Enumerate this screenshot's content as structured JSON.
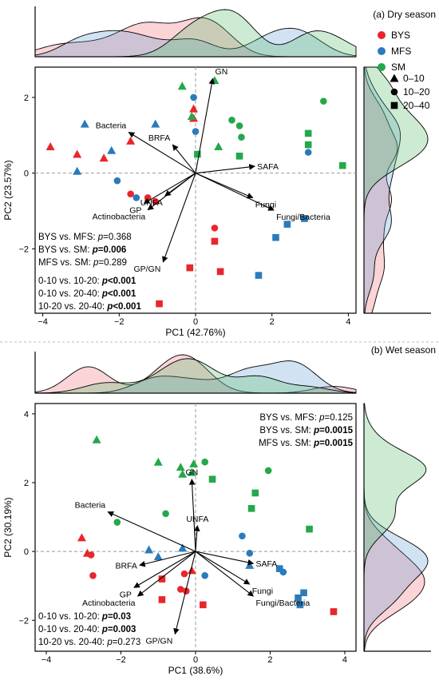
{
  "colors": {
    "BYS": "#e8262b",
    "MFS": "#2b7bbb",
    "SM": "#24a84a"
  },
  "legend": {
    "groups": [
      "BYS",
      "MFS",
      "SM"
    ],
    "depths": [
      "0–10",
      "10–20",
      "20–40"
    ]
  },
  "chart_data": [
    {
      "type": "scatter",
      "panel": "(a) Dry season",
      "xlabel": "PC1 (42.76%)",
      "ylabel": "PC2 (23.57%)",
      "xlim": [
        -4.2,
        4.2
      ],
      "ylim": [
        -3.7,
        2.8
      ],
      "xticks": [
        -4,
        -2,
        0,
        2,
        4
      ],
      "yticks": [
        -2,
        0,
        2
      ],
      "stats_left": [
        {
          "a": "BYS vs. MFS: ",
          "p": "p",
          "b": "=0.368",
          "bold": false
        },
        {
          "a": "BYS vs. SM: ",
          "p": "p",
          "b": "=0.006",
          "bold": true
        },
        {
          "a": "MFS vs. SM: ",
          "p": "p",
          "b": "=0.289",
          "bold": false
        }
      ],
      "stats_depth": [
        {
          "a": "0-10 vs. 10-20: ",
          "p": "p",
          "b": "<0.001",
          "bold": true
        },
        {
          "a": "0-10 vs. 20-40: ",
          "p": "p",
          "b": "<0.001",
          "bold": true
        },
        {
          "a": "10-20 vs. 20-40: ",
          "p": "p",
          "b": "<0.001",
          "bold": true
        }
      ],
      "vectors": [
        {
          "label": "GN",
          "x": 0.45,
          "y": 2.5
        },
        {
          "label": "Bacteria",
          "x": -1.75,
          "y": 1.08
        },
        {
          "label": "BRFA",
          "x": -0.6,
          "y": 0.75
        },
        {
          "label": "SAFA",
          "x": 1.55,
          "y": 0.18
        },
        {
          "label": "Fungi",
          "x": 1.5,
          "y": -0.65
        },
        {
          "label": "Fungi/Bacteria",
          "x": 2.05,
          "y": -0.98
        },
        {
          "label": "GP",
          "x": -1.35,
          "y": -0.8
        },
        {
          "label": "Actinobacteria",
          "x": -1.25,
          "y": -0.97
        },
        {
          "label": "UNFA",
          "x": -0.8,
          "y": -0.6
        },
        {
          "label": "GP/GN",
          "x": -0.85,
          "y": -2.35
        }
      ],
      "points": [
        {
          "g": "BYS",
          "d": "0–10",
          "x": -3.8,
          "y": 0.7
        },
        {
          "g": "BYS",
          "d": "0–10",
          "x": -3.1,
          "y": 0.5
        },
        {
          "g": "BYS",
          "d": "0–10",
          "x": -2.4,
          "y": 0.4
        },
        {
          "g": "BYS",
          "d": "0–10",
          "x": -1.7,
          "y": 0.85
        },
        {
          "g": "BYS",
          "d": "0–10",
          "x": -0.05,
          "y": 1.7
        },
        {
          "g": "BYS",
          "d": "0–10",
          "x": -0.05,
          "y": 1.45
        },
        {
          "g": "BYS",
          "d": "10–20",
          "x": -1.7,
          "y": -0.55
        },
        {
          "g": "BYS",
          "d": "10–20",
          "x": -1.25,
          "y": -0.65
        },
        {
          "g": "BYS",
          "d": "10–20",
          "x": -1.05,
          "y": -0.75
        },
        {
          "g": "BYS",
          "d": "10–20",
          "x": 0.5,
          "y": -1.45
        },
        {
          "g": "BYS",
          "d": "20–40",
          "x": 0.5,
          "y": -1.8
        },
        {
          "g": "BYS",
          "d": "20–40",
          "x": -0.15,
          "y": -2.5
        },
        {
          "g": "BYS",
          "d": "20–40",
          "x": 0.65,
          "y": -2.6
        },
        {
          "g": "BYS",
          "d": "20–40",
          "x": -0.95,
          "y": -3.45
        },
        {
          "g": "MFS",
          "d": "0–10",
          "x": -3.1,
          "y": 0.05
        },
        {
          "g": "MFS",
          "d": "0–10",
          "x": -2.9,
          "y": 1.3
        },
        {
          "g": "MFS",
          "d": "0–10",
          "x": -2.2,
          "y": 0.6
        },
        {
          "g": "MFS",
          "d": "0–10",
          "x": -1.05,
          "y": 1.3
        },
        {
          "g": "MFS",
          "d": "10–20",
          "x": -0.05,
          "y": 2.0
        },
        {
          "g": "MFS",
          "d": "10–20",
          "x": 0.0,
          "y": 1.1
        },
        {
          "g": "MFS",
          "d": "10–20",
          "x": -2.05,
          "y": -0.2
        },
        {
          "g": "MFS",
          "d": "10–20",
          "x": -1.55,
          "y": -0.65
        },
        {
          "g": "MFS",
          "d": "10–20",
          "x": 2.95,
          "y": 0.55
        },
        {
          "g": "MFS",
          "d": "20–40",
          "x": 2.85,
          "y": -1.2
        },
        {
          "g": "MFS",
          "d": "20–40",
          "x": 2.4,
          "y": -1.35
        },
        {
          "g": "MFS",
          "d": "20–40",
          "x": 2.1,
          "y": -1.7
        },
        {
          "g": "MFS",
          "d": "20–40",
          "x": 1.65,
          "y": -2.7
        },
        {
          "g": "SM",
          "d": "0–10",
          "x": -0.35,
          "y": 2.3
        },
        {
          "g": "SM",
          "d": "0–10",
          "x": 0.5,
          "y": 2.45
        },
        {
          "g": "SM",
          "d": "0–10",
          "x": -0.1,
          "y": 1.5
        },
        {
          "g": "SM",
          "d": "0–10",
          "x": 0.6,
          "y": 0.7
        },
        {
          "g": "SM",
          "d": "10–20",
          "x": 0.95,
          "y": 1.4
        },
        {
          "g": "SM",
          "d": "10–20",
          "x": 1.15,
          "y": 1.25
        },
        {
          "g": "SM",
          "d": "10–20",
          "x": 1.2,
          "y": 0.95
        },
        {
          "g": "SM",
          "d": "10–20",
          "x": 3.35,
          "y": 1.9
        },
        {
          "g": "SM",
          "d": "20–40",
          "x": 0.05,
          "y": 0.5
        },
        {
          "g": "SM",
          "d": "20–40",
          "x": 1.15,
          "y": 0.45
        },
        {
          "g": "SM",
          "d": "20–40",
          "x": 2.95,
          "y": 1.05
        },
        {
          "g": "SM",
          "d": "20–40",
          "x": 2.95,
          "y": 0.75
        },
        {
          "g": "SM",
          "d": "20–40",
          "x": 3.85,
          "y": 0.2
        }
      ]
    },
    {
      "type": "scatter",
      "panel": "(b) Wet season",
      "xlabel": "PC1 (38.6%)",
      "ylabel": "PC2 (30.19%)",
      "xlim": [
        -4.3,
        4.3
      ],
      "ylim": [
        -2.9,
        4.3
      ],
      "xticks": [
        -4,
        -2,
        0,
        2,
        4
      ],
      "yticks": [
        -2,
        0,
        2,
        4
      ],
      "stats_left": [
        {
          "a": "BYS vs. MFS: ",
          "p": "p",
          "b": "=0.125",
          "bold": false
        },
        {
          "a": "BYS vs. SM: ",
          "p": "p",
          "b": "=0.0015",
          "bold": true
        },
        {
          "a": "MFS vs. SM: ",
          "p": "p",
          "b": "=0.0015",
          "bold": true
        }
      ],
      "stats_depth": [
        {
          "a": "0-10 vs. 10-20: ",
          "p": "p",
          "b": "=0.03",
          "bold": true
        },
        {
          "a": "0-10 vs. 20-40: ",
          "p": "p",
          "b": "=0.003",
          "bold": true
        },
        {
          "a": "10-20 vs. 20-40: ",
          "p": "p",
          "b": "=0.273",
          "bold": false
        }
      ],
      "vectors": [
        {
          "label": "GN",
          "x": -0.1,
          "y": 2.1
        },
        {
          "label": "Bacteria",
          "x": -2.35,
          "y": 1.15
        },
        {
          "label": "UNFA",
          "x": 0.05,
          "y": 0.75
        },
        {
          "label": "BRFA",
          "x": -1.5,
          "y": -0.4
        },
        {
          "label": "SAFA",
          "x": 1.55,
          "y": -0.35
        },
        {
          "label": "Fungi",
          "x": 1.45,
          "y": -0.95
        },
        {
          "label": "Fungi/Bacteria",
          "x": 1.55,
          "y": -1.3
        },
        {
          "label": "GP",
          "x": -1.65,
          "y": -1.05
        },
        {
          "label": "Actinobacteria",
          "x": -1.55,
          "y": -1.3
        },
        {
          "label": "GP/GN",
          "x": -0.55,
          "y": -2.4
        }
      ],
      "points": [
        {
          "g": "BYS",
          "d": "0–10",
          "x": -3.05,
          "y": 0.4
        },
        {
          "g": "BYS",
          "d": "0–10",
          "x": -2.9,
          "y": -0.05
        },
        {
          "g": "BYS",
          "d": "0–10",
          "x": -0.1,
          "y": -0.55
        },
        {
          "g": "BYS",
          "d": "10–20",
          "x": -2.8,
          "y": -0.1
        },
        {
          "g": "BYS",
          "d": "10–20",
          "x": -2.75,
          "y": -0.7
        },
        {
          "g": "BYS",
          "d": "10–20",
          "x": -0.3,
          "y": -0.65
        },
        {
          "g": "BYS",
          "d": "10–20",
          "x": -0.4,
          "y": -1.1
        },
        {
          "g": "BYS",
          "d": "10–20",
          "x": -0.25,
          "y": -1.15
        },
        {
          "g": "BYS",
          "d": "20–40",
          "x": -0.9,
          "y": -0.8
        },
        {
          "g": "BYS",
          "d": "20–40",
          "x": -0.9,
          "y": -1.4
        },
        {
          "g": "BYS",
          "d": "20–40",
          "x": 0.2,
          "y": -1.55
        },
        {
          "g": "BYS",
          "d": "20–40",
          "x": 3.7,
          "y": -1.75
        },
        {
          "g": "MFS",
          "d": "0–10",
          "x": -1.25,
          "y": 0.05
        },
        {
          "g": "MFS",
          "d": "0–10",
          "x": -1.0,
          "y": -0.15
        },
        {
          "g": "MFS",
          "d": "0–10",
          "x": -0.35,
          "y": 0.1
        },
        {
          "g": "MFS",
          "d": "0–10",
          "x": 1.45,
          "y": -0.4
        },
        {
          "g": "MFS",
          "d": "10–20",
          "x": 1.25,
          "y": 0.45
        },
        {
          "g": "MFS",
          "d": "10–20",
          "x": 1.45,
          "y": -0.05
        },
        {
          "g": "MFS",
          "d": "10–20",
          "x": 0.25,
          "y": -0.7
        },
        {
          "g": "MFS",
          "d": "10–20",
          "x": 2.35,
          "y": -0.6
        },
        {
          "g": "MFS",
          "d": "20–40",
          "x": 2.25,
          "y": -0.5
        },
        {
          "g": "MFS",
          "d": "20–40",
          "x": 2.75,
          "y": -1.35
        },
        {
          "g": "MFS",
          "d": "20–40",
          "x": 2.8,
          "y": -1.55
        },
        {
          "g": "MFS",
          "d": "20–40",
          "x": 2.9,
          "y": -1.2
        },
        {
          "g": "SM",
          "d": "0–10",
          "x": -2.65,
          "y": 3.25
        },
        {
          "g": "SM",
          "d": "0–10",
          "x": -1.0,
          "y": 2.6
        },
        {
          "g": "SM",
          "d": "0–10",
          "x": -0.4,
          "y": 2.45
        },
        {
          "g": "SM",
          "d": "0–10",
          "x": -0.35,
          "y": 2.25
        },
        {
          "g": "SM",
          "d": "0–10",
          "x": -0.1,
          "y": 2.3
        },
        {
          "g": "SM",
          "d": "0–10",
          "x": -0.05,
          "y": 2.55
        },
        {
          "g": "SM",
          "d": "10–20",
          "x": 0.25,
          "y": 2.6
        },
        {
          "g": "SM",
          "d": "10–20",
          "x": 1.95,
          "y": 2.35
        },
        {
          "g": "SM",
          "d": "10–20",
          "x": -2.1,
          "y": 0.85
        },
        {
          "g": "SM",
          "d": "10–20",
          "x": -0.8,
          "y": 1.1
        },
        {
          "g": "SM",
          "d": "20–40",
          "x": 0.45,
          "y": 2.1
        },
        {
          "g": "SM",
          "d": "20–40",
          "x": 1.6,
          "y": 1.7
        },
        {
          "g": "SM",
          "d": "20–40",
          "x": 1.5,
          "y": 1.25
        },
        {
          "g": "SM",
          "d": "20–40",
          "x": 3.05,
          "y": 0.65
        }
      ]
    }
  ]
}
